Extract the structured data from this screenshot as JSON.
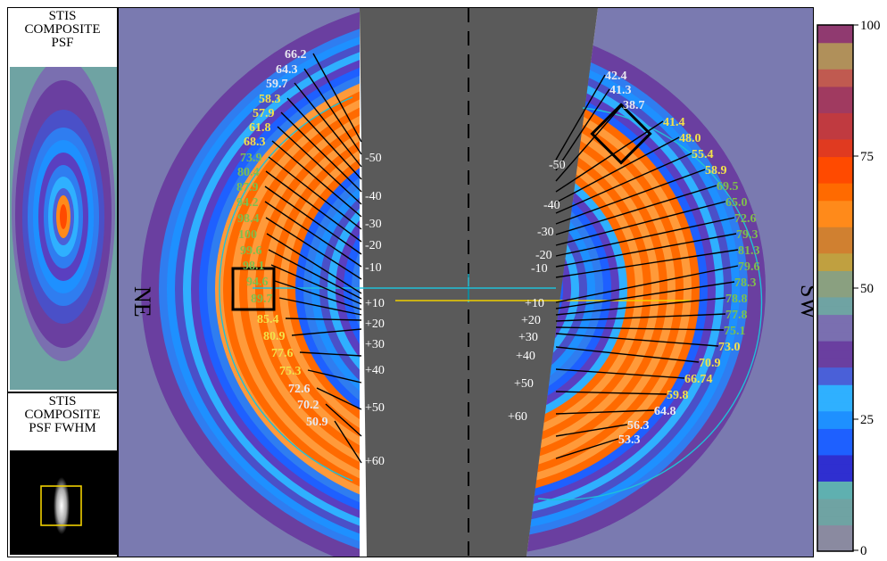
{
  "psf_panel": {
    "title_lines": [
      "STIS",
      "COMPOSITE",
      "PSF"
    ]
  },
  "fwhm_panel": {
    "title_lines": [
      "STIS",
      "COMPOSITE",
      "PSF FWHM"
    ]
  },
  "main_panel": {
    "ne_label": "NE",
    "sw_label": "SW"
  },
  "colorbar": {
    "ticks": [
      "0",
      "25",
      "50",
      "75",
      "100"
    ],
    "range": [
      0,
      100
    ]
  },
  "chart_data": {
    "type": "heatmap",
    "left_side": {
      "angle_labels": [
        "-50",
        "-40",
        "-30",
        "-20",
        "-10",
        "+10",
        "+20",
        "+30",
        "+40",
        "+50",
        "+60"
      ],
      "values": [
        {
          "value": "66.2",
          "color": "#e8e8f0"
        },
        {
          "value": "64.3",
          "color": "#e8e8f0"
        },
        {
          "value": "59.7",
          "color": "#e8e8f0"
        },
        {
          "value": "58.3",
          "color": "#f2e24a"
        },
        {
          "value": "57.9",
          "color": "#f2e24a"
        },
        {
          "value": "61.8",
          "color": "#f2e24a"
        },
        {
          "value": "68.3",
          "color": "#f2e24a"
        },
        {
          "value": "73.9",
          "color": "#7fbf4d"
        },
        {
          "value": "80.4",
          "color": "#7fbf4d"
        },
        {
          "value": "87.9",
          "color": "#7fbf4d"
        },
        {
          "value": "94.2",
          "color": "#7fbf4d"
        },
        {
          "value": "98.4",
          "color": "#7fbf4d"
        },
        {
          "value": "100",
          "color": "#7fbf4d"
        },
        {
          "value": "99.6",
          "color": "#7fbf4d"
        },
        {
          "value": "98.1",
          "color": "#7fbf4d"
        },
        {
          "value": "94.6",
          "color": "#7fbf4d"
        },
        {
          "value": "89.7",
          "color": "#7fbf4d"
        },
        {
          "value": "85.4",
          "color": "#f2e24a"
        },
        {
          "value": "80.9",
          "color": "#f2e24a"
        },
        {
          "value": "77.6",
          "color": "#f2e24a"
        },
        {
          "value": "75.3",
          "color": "#f2e24a"
        },
        {
          "value": "72.6",
          "color": "#e8e8f0"
        },
        {
          "value": "70.2",
          "color": "#e8e8f0"
        },
        {
          "value": "50.9",
          "color": "#e8e8f0"
        }
      ]
    },
    "right_side": {
      "angle_labels": [
        "-50",
        "-40",
        "-30",
        "-20",
        "-10",
        "+10",
        "+20",
        "+30",
        "+40",
        "+50",
        "+60"
      ],
      "values": [
        {
          "value": "42.4",
          "color": "#e8e8f0"
        },
        {
          "value": "41.3",
          "color": "#e8e8f0"
        },
        {
          "value": "38.7",
          "color": "#e8e8f0"
        },
        {
          "value": "41.4",
          "color": "#f2e24a"
        },
        {
          "value": "48.0",
          "color": "#f2e24a"
        },
        {
          "value": "55.4",
          "color": "#f2e24a"
        },
        {
          "value": "58.9",
          "color": "#f2e24a"
        },
        {
          "value": "69.5",
          "color": "#7fbf4d"
        },
        {
          "value": "65.0",
          "color": "#7fbf4d"
        },
        {
          "value": "72.6",
          "color": "#7fbf4d"
        },
        {
          "value": "79.3",
          "color": "#7fbf4d"
        },
        {
          "value": "81.3",
          "color": "#7fbf4d"
        },
        {
          "value": "79.6",
          "color": "#7fbf4d"
        },
        {
          "value": "78.3",
          "color": "#7fbf4d"
        },
        {
          "value": "78.8",
          "color": "#7fbf4d"
        },
        {
          "value": "77.8",
          "color": "#7fbf4d"
        },
        {
          "value": "75.1",
          "color": "#7fbf4d"
        },
        {
          "value": "73.0",
          "color": "#f2e24a"
        },
        {
          "value": "70.9",
          "color": "#f2e24a"
        },
        {
          "value": "66.74",
          "color": "#f2e24a"
        },
        {
          "value": "59.8",
          "color": "#f2e24a"
        },
        {
          "value": "64.8",
          "color": "#e8e8f0"
        },
        {
          "value": "56.3",
          "color": "#e8e8f0"
        },
        {
          "value": "53.3",
          "color": "#e8e8f0"
        }
      ]
    }
  }
}
